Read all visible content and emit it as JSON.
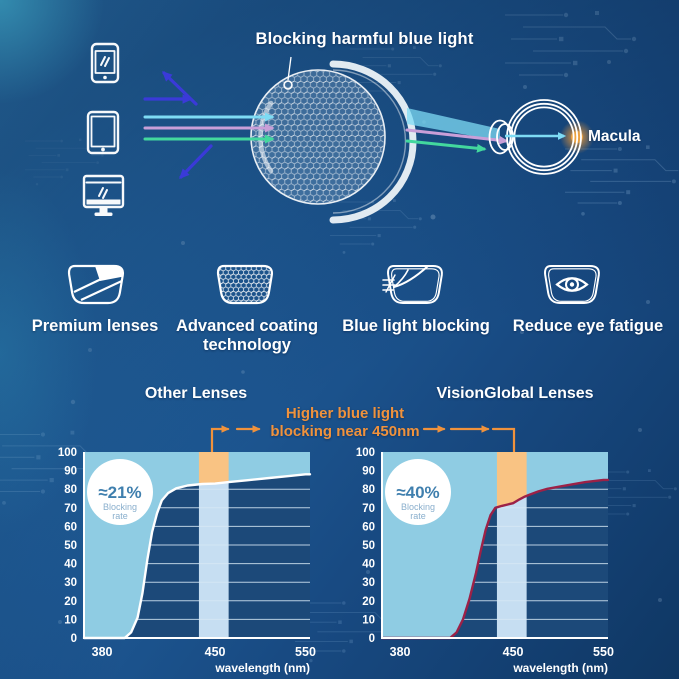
{
  "hero": {
    "title": "Blocking harmful blue light",
    "macula_label": "Macula",
    "devices": [
      "smartphone",
      "tablet",
      "monitor"
    ],
    "ray_colors": {
      "blocked_blue": "#3a3ad8",
      "cyan": "#7edbf4",
      "pink": "#c99fd8",
      "green": "#43d89e"
    },
    "macula_glow_color": "#f5a63d"
  },
  "features": [
    {
      "label": "Premium lenses",
      "icon": "premium-lens-icon"
    },
    {
      "label": "Advanced coating technology",
      "icon": "coating-lens-icon"
    },
    {
      "label": "Blue light blocking",
      "icon": "blue-light-blocking-icon"
    },
    {
      "label": "Reduce eye fatigue",
      "icon": "eye-fatigue-icon"
    }
  ],
  "comparison": {
    "annotation_line1": "Higher blue light",
    "annotation_line2": "blocking near 450nm",
    "annotation_color": "#f0923c"
  },
  "chart_data": [
    {
      "type": "area",
      "title": "Other Lenses",
      "badge_value": "≈21%",
      "badge_label_lines": [
        "Blocking",
        "rate"
      ],
      "xlabel": "wavelength (nm)",
      "x_ticks": [
        380,
        450,
        550
      ],
      "y_ticks": [
        0,
        10,
        20,
        30,
        40,
        50,
        60,
        70,
        80,
        90,
        100
      ],
      "ylim": [
        0,
        100
      ],
      "band_nm": [
        440,
        465
      ],
      "points": [
        [
          380,
          0
        ],
        [
          394,
          0
        ],
        [
          398,
          3
        ],
        [
          402,
          11
        ],
        [
          405,
          24
        ],
        [
          408,
          42
        ],
        [
          411,
          57
        ],
        [
          414,
          67
        ],
        [
          417,
          74
        ],
        [
          421,
          78
        ],
        [
          426,
          80.5
        ],
        [
          433,
          82
        ],
        [
          442,
          82.8
        ],
        [
          450,
          83
        ],
        [
          465,
          83.8
        ],
        [
          485,
          84.8
        ],
        [
          510,
          86
        ],
        [
          530,
          87
        ],
        [
          550,
          88
        ]
      ],
      "colors": {
        "area": "#8fcce3",
        "band_below": "#c6def2",
        "band_above": "#f9c383",
        "grid": "#d6e8f5",
        "curve": "#ffffff",
        "plot_bg": "#1c4979",
        "axis": "#ffffff",
        "badge_text": "#3f7fae",
        "badge_sub": "#8aafcd"
      }
    },
    {
      "type": "area",
      "title": "VisionGlobal Lenses",
      "badge_value": "≈40%",
      "badge_label_lines": [
        "Blocking",
        "rate"
      ],
      "xlabel": "wavelength (nm)",
      "x_ticks": [
        380,
        450,
        550
      ],
      "y_ticks": [
        0,
        10,
        20,
        30,
        40,
        50,
        60,
        70,
        80,
        90,
        100
      ],
      "ylim": [
        0,
        100
      ],
      "band_nm": [
        440,
        465
      ],
      "points": [
        [
          380,
          0
        ],
        [
          411,
          0
        ],
        [
          415,
          3
        ],
        [
          419,
          10
        ],
        [
          423,
          21
        ],
        [
          427,
          35
        ],
        [
          430,
          47
        ],
        [
          433,
          58
        ],
        [
          436,
          66
        ],
        [
          439,
          70
        ],
        [
          443,
          71
        ],
        [
          450,
          72.5
        ],
        [
          457,
          74.5
        ],
        [
          463,
          76
        ],
        [
          468,
          77
        ],
        [
          478,
          78.8
        ],
        [
          488,
          80.2
        ],
        [
          500,
          81.3
        ],
        [
          515,
          82.6
        ],
        [
          530,
          83.8
        ],
        [
          550,
          85
        ]
      ],
      "colors": {
        "area": "#8fcce3",
        "band_below": "#c6def2",
        "band_above": "#f9c383",
        "grid": "#d6e8f5",
        "curve": "#9c2147",
        "plot_bg": "#1c4979",
        "axis": "#ffffff",
        "badge_text": "#3f7fae",
        "badge_sub": "#8aafcd"
      }
    }
  ]
}
